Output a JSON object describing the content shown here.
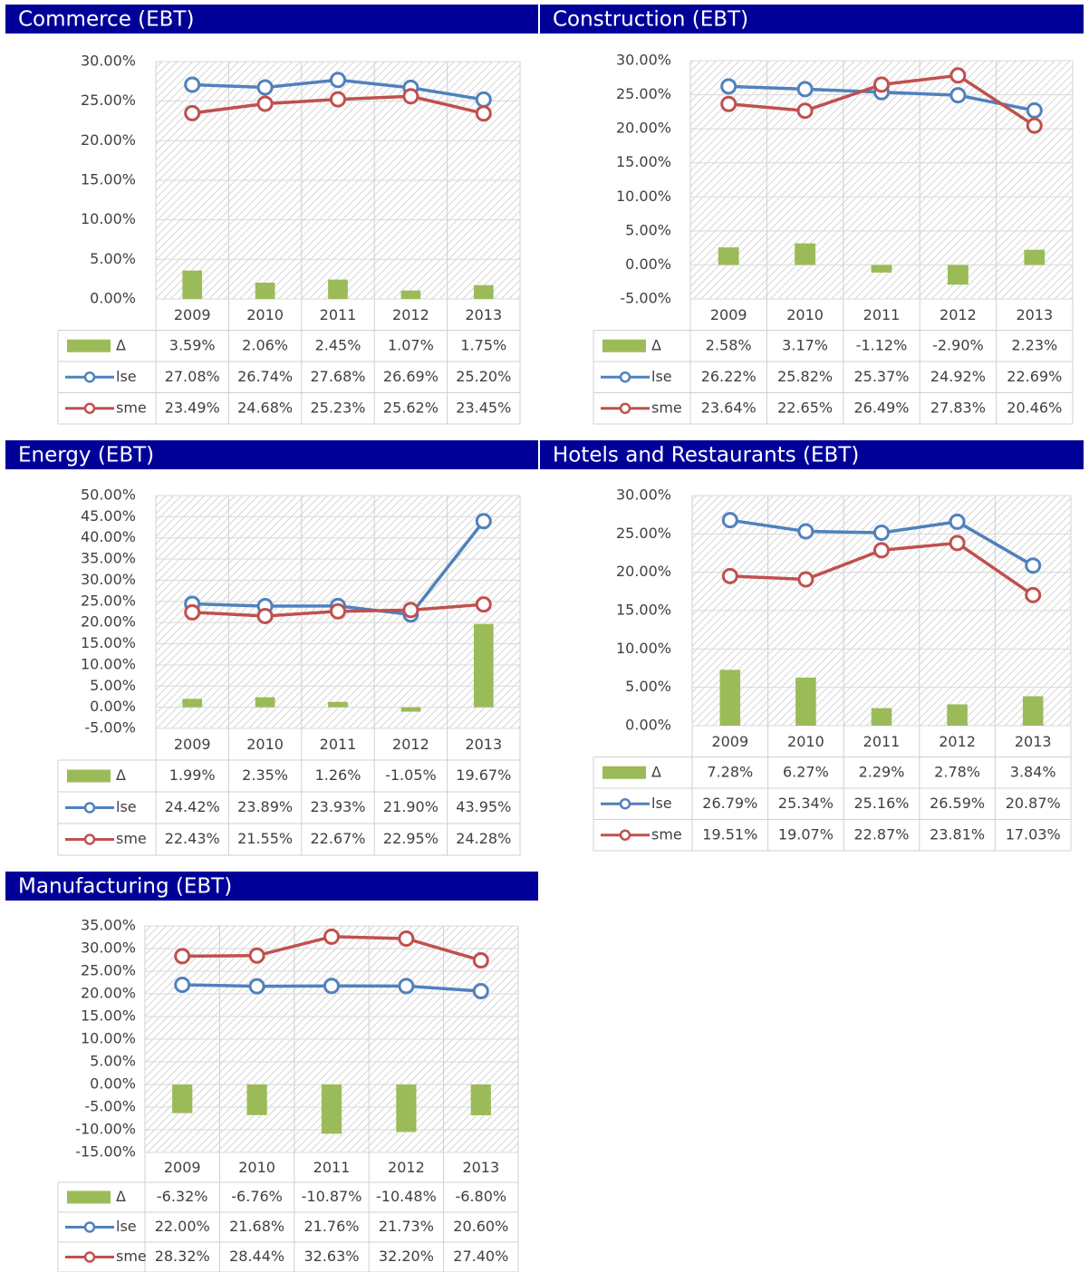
{
  "chart_data": [
    {
      "type": "combo",
      "title": "Commerce (EBT)",
      "categories": [
        "2009",
        "2010",
        "2011",
        "2012",
        "2013"
      ],
      "series": [
        {
          "name": "Δ",
          "kind": "bar",
          "color": "#9bbb59",
          "values": [
            3.59,
            2.06,
            2.45,
            1.07,
            1.75
          ],
          "value_labels": [
            "3.59%",
            "2.06%",
            "2.45%",
            "1.07%",
            "1.75%"
          ]
        },
        {
          "name": "lse",
          "kind": "line",
          "color": "#4f81bd",
          "values": [
            27.08,
            26.74,
            27.68,
            26.69,
            25.2
          ],
          "value_labels": [
            "27.08%",
            "26.74%",
            "27.68%",
            "26.69%",
            "25.20%"
          ]
        },
        {
          "name": "sme",
          "kind": "line",
          "color": "#c0504d",
          "values": [
            23.49,
            24.68,
            25.23,
            25.62,
            23.45
          ],
          "value_labels": [
            "23.49%",
            "24.68%",
            "25.23%",
            "25.62%",
            "23.45%"
          ]
        }
      ],
      "ylim": [
        0,
        30
      ],
      "yticks": [
        {
          "value": 0,
          "label": "0.00%"
        },
        {
          "value": 5,
          "label": "5.00%"
        },
        {
          "value": 10,
          "label": "10.00%"
        },
        {
          "value": 15,
          "label": "15.00%"
        },
        {
          "value": 20,
          "label": "20.00%"
        },
        {
          "value": 25,
          "label": "25.00%"
        },
        {
          "value": 30,
          "label": "30.00%"
        }
      ],
      "grid": true
    },
    {
      "type": "combo",
      "title": "Construction (EBT)",
      "categories": [
        "2009",
        "2010",
        "2011",
        "2012",
        "2013"
      ],
      "series": [
        {
          "name": "Δ",
          "kind": "bar",
          "color": "#9bbb59",
          "values": [
            2.58,
            3.17,
            -1.12,
            -2.9,
            2.23
          ],
          "value_labels": [
            "2.58%",
            "3.17%",
            "-1.12%",
            "-2.90%",
            "2.23%"
          ]
        },
        {
          "name": "lse",
          "kind": "line",
          "color": "#4f81bd",
          "values": [
            26.22,
            25.82,
            25.37,
            24.92,
            22.69
          ],
          "value_labels": [
            "26.22%",
            "25.82%",
            "25.37%",
            "24.92%",
            "22.69%"
          ]
        },
        {
          "name": "sme",
          "kind": "line",
          "color": "#c0504d",
          "values": [
            23.64,
            22.65,
            26.49,
            27.83,
            20.46
          ],
          "value_labels": [
            "23.64%",
            "22.65%",
            "26.49%",
            "27.83%",
            "20.46%"
          ]
        }
      ],
      "ylim": [
        -5,
        30
      ],
      "yticks": [
        {
          "value": -5,
          "label": "-5.00%"
        },
        {
          "value": 0,
          "label": "0.00%"
        },
        {
          "value": 5,
          "label": "5.00%"
        },
        {
          "value": 10,
          "label": "10.00%"
        },
        {
          "value": 15,
          "label": "15.00%"
        },
        {
          "value": 20,
          "label": "20.00%"
        },
        {
          "value": 25,
          "label": "25.00%"
        },
        {
          "value": 30,
          "label": "30.00%"
        }
      ],
      "grid": true
    },
    {
      "type": "combo",
      "title": "Energy (EBT)",
      "categories": [
        "2009",
        "2010",
        "2011",
        "2012",
        "2013"
      ],
      "series": [
        {
          "name": "Δ",
          "kind": "bar",
          "color": "#9bbb59",
          "values": [
            1.99,
            2.35,
            1.26,
            -1.05,
            19.67
          ],
          "value_labels": [
            "1.99%",
            "2.35%",
            "1.26%",
            "-1.05%",
            "19.67%"
          ]
        },
        {
          "name": "lse",
          "kind": "line",
          "color": "#4f81bd",
          "values": [
            24.42,
            23.89,
            23.93,
            21.9,
            43.95
          ],
          "value_labels": [
            "24.42%",
            "23.89%",
            "23.93%",
            "21.90%",
            "43.95%"
          ]
        },
        {
          "name": "sme",
          "kind": "line",
          "color": "#c0504d",
          "values": [
            22.43,
            21.55,
            22.67,
            22.95,
            24.28
          ],
          "value_labels": [
            "22.43%",
            "21.55%",
            "22.67%",
            "22.95%",
            "24.28%"
          ]
        }
      ],
      "ylim": [
        -5,
        50
      ],
      "yticks": [
        {
          "value": -5,
          "label": "-5.00%"
        },
        {
          "value": 0,
          "label": "0.00%"
        },
        {
          "value": 5,
          "label": "5.00%"
        },
        {
          "value": 10,
          "label": "10.00%"
        },
        {
          "value": 15,
          "label": "15.00%"
        },
        {
          "value": 20,
          "label": "20.00%"
        },
        {
          "value": 25,
          "label": "25.00%"
        },
        {
          "value": 30,
          "label": "30.00%"
        },
        {
          "value": 35,
          "label": "35.00%"
        },
        {
          "value": 40,
          "label": "40.00%"
        },
        {
          "value": 45,
          "label": "45.00%"
        },
        {
          "value": 50,
          "label": "50.00%"
        }
      ],
      "grid": true
    },
    {
      "type": "combo",
      "title": "Hotels and Restaurants (EBT)",
      "categories": [
        "2009",
        "2010",
        "2011",
        "2012",
        "2013"
      ],
      "series": [
        {
          "name": "Δ",
          "kind": "bar",
          "color": "#9bbb59",
          "values": [
            7.28,
            6.27,
            2.29,
            2.78,
            3.84
          ],
          "value_labels": [
            "7.28%",
            "6.27%",
            "2.29%",
            "2.78%",
            "3.84%"
          ]
        },
        {
          "name": "lse",
          "kind": "line",
          "color": "#4f81bd",
          "values": [
            26.79,
            25.34,
            25.16,
            26.59,
            20.87
          ],
          "value_labels": [
            "26.79%",
            "25.34%",
            "25.16%",
            "26.59%",
            "20.87%"
          ]
        },
        {
          "name": "sme",
          "kind": "line",
          "color": "#c0504d",
          "values": [
            19.51,
            19.07,
            22.87,
            23.81,
            17.03
          ],
          "value_labels": [
            "19.51%",
            "19.07%",
            "22.87%",
            "23.81%",
            "17.03%"
          ]
        }
      ],
      "ylim": [
        0,
        30
      ],
      "yticks": [
        {
          "value": 0,
          "label": "0.00%"
        },
        {
          "value": 5,
          "label": "5.00%"
        },
        {
          "value": 10,
          "label": "10.00%"
        },
        {
          "value": 15,
          "label": "15.00%"
        },
        {
          "value": 20,
          "label": "20.00%"
        },
        {
          "value": 25,
          "label": "25.00%"
        },
        {
          "value": 30,
          "label": "30.00%"
        }
      ],
      "grid": true
    },
    {
      "type": "combo",
      "title": "Manufacturing (EBT)",
      "categories": [
        "2009",
        "2010",
        "2011",
        "2012",
        "2013"
      ],
      "series": [
        {
          "name": "Δ",
          "kind": "bar",
          "color": "#9bbb59",
          "values": [
            -6.32,
            -6.76,
            -10.87,
            -10.48,
            -6.8
          ],
          "value_labels": [
            "-6.32%",
            "-6.76%",
            "-10.87%",
            "-10.48%",
            "-6.80%"
          ]
        },
        {
          "name": "lse",
          "kind": "line",
          "color": "#4f81bd",
          "values": [
            22.0,
            21.68,
            21.76,
            21.73,
            20.6
          ],
          "value_labels": [
            "22.00%",
            "21.68%",
            "21.76%",
            "21.73%",
            "20.60%"
          ]
        },
        {
          "name": "sme",
          "kind": "line",
          "color": "#c0504d",
          "values": [
            28.32,
            28.44,
            32.63,
            32.2,
            27.4
          ],
          "value_labels": [
            "28.32%",
            "28.44%",
            "32.63%",
            "32.20%",
            "27.40%"
          ]
        }
      ],
      "ylim": [
        -15,
        35
      ],
      "yticks": [
        {
          "value": -15,
          "label": "-15.00%"
        },
        {
          "value": -10,
          "label": "-10.00%"
        },
        {
          "value": -5,
          "label": "-5.00%"
        },
        {
          "value": 0,
          "label": "0.00%"
        },
        {
          "value": 5,
          "label": "5.00%"
        },
        {
          "value": 10,
          "label": "10.00%"
        },
        {
          "value": 15,
          "label": "15.00%"
        },
        {
          "value": 20,
          "label": "20.00%"
        },
        {
          "value": 25,
          "label": "25.00%"
        },
        {
          "value": 30,
          "label": "30.00%"
        },
        {
          "value": 35,
          "label": "35.00%"
        }
      ],
      "grid": true
    }
  ]
}
